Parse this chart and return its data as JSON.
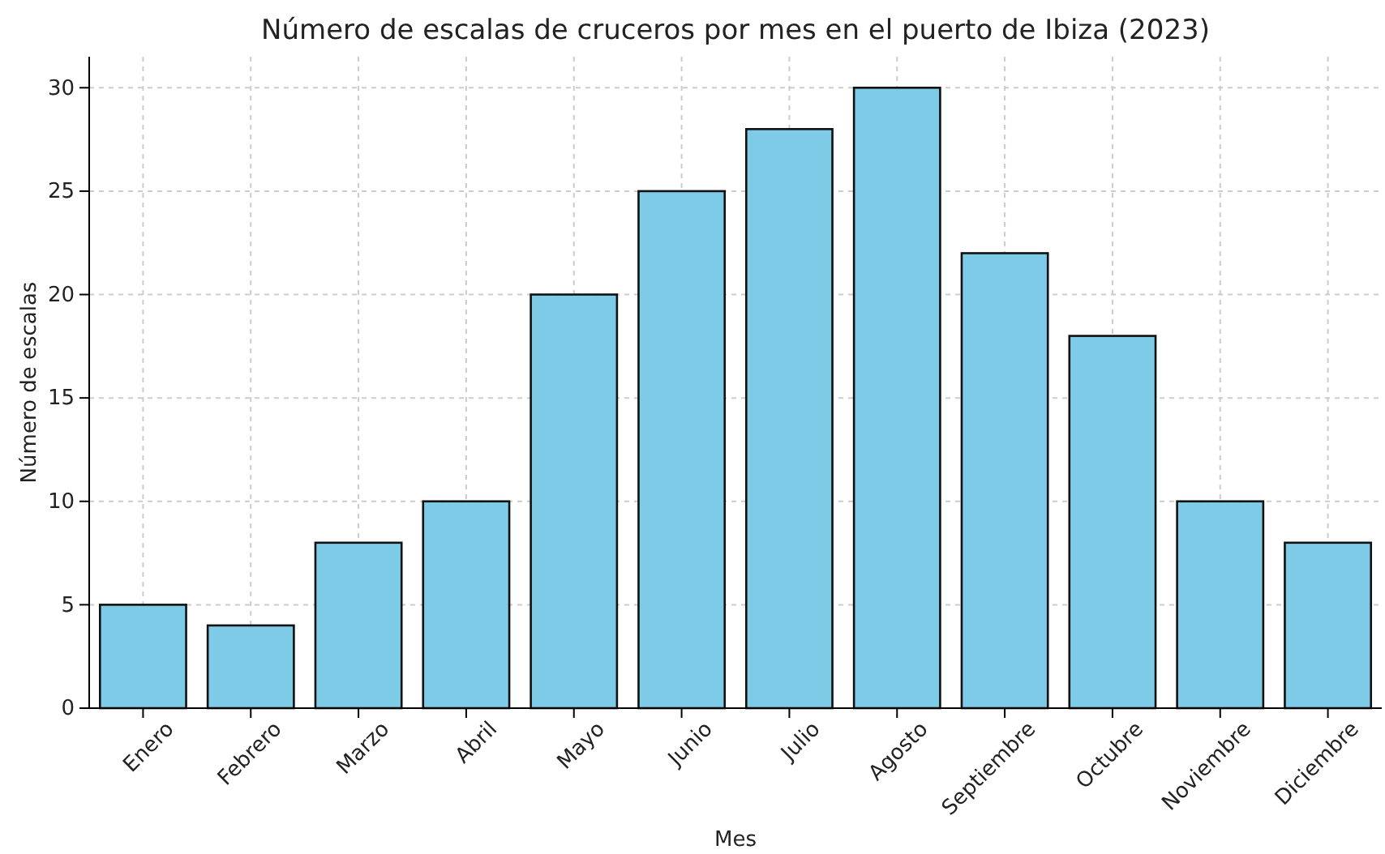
{
  "chart_data": {
    "type": "bar",
    "title": "Número de escalas de cruceros por mes en el puerto de Ibiza (2023)",
    "xlabel": "Mes",
    "ylabel": "Número de escalas",
    "categories": [
      "Enero",
      "Febrero",
      "Marzo",
      "Abril",
      "Mayo",
      "Junio",
      "Julio",
      "Agosto",
      "Septiembre",
      "Octubre",
      "Noviembre",
      "Diciembre"
    ],
    "values": [
      5,
      4,
      8,
      10,
      20,
      25,
      28,
      30,
      22,
      18,
      10,
      8
    ],
    "color": "#7ecbe7",
    "ylim": [
      0,
      31.5
    ],
    "yticks": [
      0,
      5,
      10,
      15,
      20,
      25,
      30
    ],
    "grid": true
  }
}
